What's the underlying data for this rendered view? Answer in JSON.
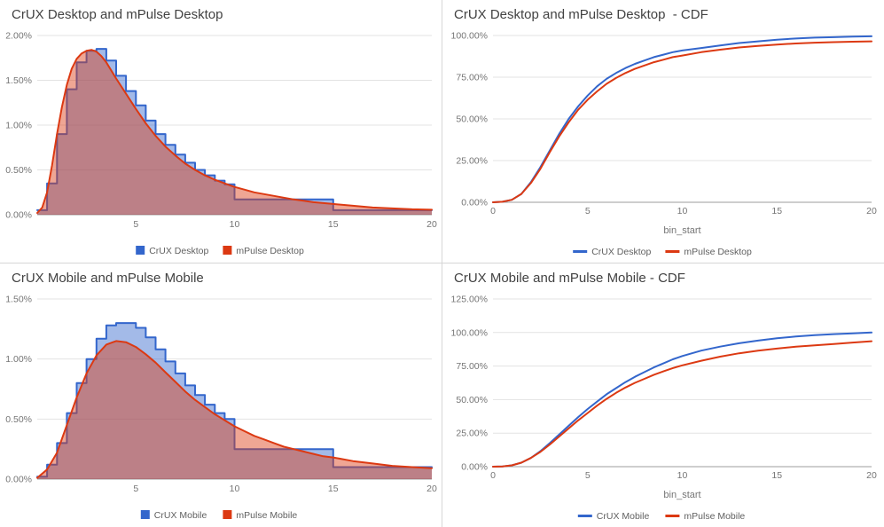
{
  "chart_data": [
    {
      "type": "area",
      "title": "CrUX Desktop and mPulse Desktop",
      "xlabel": "",
      "ylabel": "",
      "xlim": [
        0,
        20
      ],
      "ylim": [
        0,
        2.0
      ],
      "xticks": [
        5,
        10,
        15,
        20
      ],
      "yticks": [
        0,
        0.5,
        1.0,
        1.5,
        2.0
      ],
      "ytick_format": "percent2",
      "grid": true,
      "legend_position": "bottom",
      "series": [
        {
          "name": "CrUX Desktop",
          "color": "#3366cc",
          "style": "step",
          "fill": true,
          "points": [
            [
              0,
              0.05
            ],
            [
              0.5,
              0.35
            ],
            [
              1,
              0.9
            ],
            [
              1.5,
              1.4
            ],
            [
              2,
              1.7
            ],
            [
              2.5,
              1.83
            ],
            [
              3,
              1.85
            ],
            [
              3.5,
              1.72
            ],
            [
              4,
              1.55
            ],
            [
              4.5,
              1.38
            ],
            [
              5,
              1.22
            ],
            [
              5.5,
              1.05
            ],
            [
              6,
              0.9
            ],
            [
              6.5,
              0.78
            ],
            [
              7,
              0.67
            ],
            [
              7.5,
              0.58
            ],
            [
              8,
              0.5
            ],
            [
              8.5,
              0.44
            ],
            [
              9,
              0.38
            ],
            [
              9.5,
              0.34
            ],
            [
              10,
              0.17
            ],
            [
              15,
              0.05
            ],
            [
              20,
              0.05
            ]
          ]
        },
        {
          "name": "mPulse Desktop",
          "color": "#dc3912",
          "style": "line",
          "fill": true,
          "points": [
            [
              0,
              0.02
            ],
            [
              0.25,
              0.08
            ],
            [
              0.5,
              0.25
            ],
            [
              0.75,
              0.55
            ],
            [
              1,
              0.9
            ],
            [
              1.25,
              1.2
            ],
            [
              1.5,
              1.45
            ],
            [
              1.75,
              1.63
            ],
            [
              2,
              1.74
            ],
            [
              2.25,
              1.8
            ],
            [
              2.5,
              1.83
            ],
            [
              2.75,
              1.84
            ],
            [
              3,
              1.82
            ],
            [
              3.25,
              1.77
            ],
            [
              3.5,
              1.7
            ],
            [
              4,
              1.52
            ],
            [
              4.5,
              1.35
            ],
            [
              5,
              1.18
            ],
            [
              5.5,
              1.02
            ],
            [
              6,
              0.88
            ],
            [
              6.5,
              0.76
            ],
            [
              7,
              0.66
            ],
            [
              7.5,
              0.57
            ],
            [
              8,
              0.5
            ],
            [
              8.5,
              0.44
            ],
            [
              9,
              0.39
            ],
            [
              9.5,
              0.35
            ],
            [
              10,
              0.31
            ],
            [
              10.5,
              0.28
            ],
            [
              11,
              0.25
            ],
            [
              11.5,
              0.23
            ],
            [
              12,
              0.21
            ],
            [
              12.5,
              0.19
            ],
            [
              13,
              0.17
            ],
            [
              13.5,
              0.155
            ],
            [
              14,
              0.14
            ],
            [
              14.5,
              0.13
            ],
            [
              15,
              0.12
            ],
            [
              16,
              0.1
            ],
            [
              17,
              0.08
            ],
            [
              18,
              0.07
            ],
            [
              19,
              0.06
            ],
            [
              20,
              0.055
            ]
          ]
        }
      ]
    },
    {
      "type": "line",
      "title": "CrUX Desktop and mPulse Desktop  - CDF",
      "xlabel": "bin_start",
      "ylabel": "",
      "xlim": [
        0,
        20
      ],
      "ylim": [
        0,
        100
      ],
      "xticks": [
        0,
        5,
        10,
        15,
        20
      ],
      "yticks": [
        0,
        25,
        50,
        75,
        100
      ],
      "ytick_format": "percent2",
      "grid": true,
      "legend_position": "bottom",
      "series": [
        {
          "name": "CrUX Desktop",
          "color": "#3366cc",
          "style": "line",
          "fill": false,
          "points": [
            [
              0,
              0
            ],
            [
              0.5,
              0.3
            ],
            [
              1,
              1.5
            ],
            [
              1.5,
              5
            ],
            [
              2,
              12
            ],
            [
              2.5,
              21
            ],
            [
              3,
              31
            ],
            [
              3.5,
              41
            ],
            [
              4,
              50
            ],
            [
              4.5,
              57.5
            ],
            [
              5,
              64
            ],
            [
              5.5,
              69.5
            ],
            [
              6,
              74
            ],
            [
              6.5,
              77.5
            ],
            [
              7,
              80.5
            ],
            [
              7.5,
              83
            ],
            [
              8,
              85
            ],
            [
              8.5,
              87
            ],
            [
              9,
              88.5
            ],
            [
              9.5,
              90
            ],
            [
              10,
              91
            ],
            [
              11,
              92.5
            ],
            [
              12,
              94
            ],
            [
              13,
              95.5
            ],
            [
              14,
              96.5
            ],
            [
              15,
              97.5
            ],
            [
              16,
              98.2
            ],
            [
              17,
              98.7
            ],
            [
              18,
              99
            ],
            [
              19,
              99.3
            ],
            [
              20,
              99.5
            ]
          ]
        },
        {
          "name": "mPulse Desktop",
          "color": "#dc3912",
          "style": "line",
          "fill": false,
          "points": [
            [
              0,
              0
            ],
            [
              0.5,
              0.3
            ],
            [
              1,
              1.5
            ],
            [
              1.5,
              5
            ],
            [
              2,
              11.5
            ],
            [
              2.5,
              20
            ],
            [
              3,
              30
            ],
            [
              3.5,
              39.5
            ],
            [
              4,
              48
            ],
            [
              4.5,
              55.5
            ],
            [
              5,
              61.5
            ],
            [
              5.5,
              66.5
            ],
            [
              6,
              71
            ],
            [
              6.5,
              74.5
            ],
            [
              7,
              77.5
            ],
            [
              7.5,
              80
            ],
            [
              8,
              82
            ],
            [
              8.5,
              84
            ],
            [
              9,
              85.5
            ],
            [
              9.5,
              87
            ],
            [
              10,
              88
            ],
            [
              11,
              90
            ],
            [
              12,
              91.5
            ],
            [
              13,
              92.8
            ],
            [
              14,
              93.8
            ],
            [
              15,
              94.6
            ],
            [
              16,
              95.2
            ],
            [
              17,
              95.7
            ],
            [
              18,
              96
            ],
            [
              19,
              96.3
            ],
            [
              20,
              96.5
            ]
          ]
        }
      ]
    },
    {
      "type": "area",
      "title": "CrUX Mobile and mPulse Mobile",
      "xlabel": "",
      "ylabel": "",
      "xlim": [
        0,
        20
      ],
      "ylim": [
        0,
        1.5
      ],
      "xticks": [
        5,
        10,
        15,
        20
      ],
      "yticks": [
        0,
        0.5,
        1.0,
        1.5
      ],
      "ytick_format": "percent2",
      "grid": true,
      "legend_position": "bottom",
      "series": [
        {
          "name": "CrUX Mobile",
          "color": "#3366cc",
          "style": "step",
          "fill": true,
          "points": [
            [
              0,
              0.02
            ],
            [
              0.5,
              0.12
            ],
            [
              1,
              0.3
            ],
            [
              1.5,
              0.55
            ],
            [
              2,
              0.8
            ],
            [
              2.5,
              1.0
            ],
            [
              3,
              1.17
            ],
            [
              3.5,
              1.28
            ],
            [
              4,
              1.3
            ],
            [
              4.5,
              1.3
            ],
            [
              5,
              1.26
            ],
            [
              5.5,
              1.18
            ],
            [
              6,
              1.08
            ],
            [
              6.5,
              0.98
            ],
            [
              7,
              0.88
            ],
            [
              7.5,
              0.78
            ],
            [
              8,
              0.7
            ],
            [
              8.5,
              0.62
            ],
            [
              9,
              0.55
            ],
            [
              9.5,
              0.5
            ],
            [
              10,
              0.25
            ],
            [
              15,
              0.1
            ],
            [
              20,
              0.1
            ]
          ]
        },
        {
          "name": "mPulse Mobile",
          "color": "#dc3912",
          "style": "line",
          "fill": true,
          "points": [
            [
              0,
              0.01
            ],
            [
              0.5,
              0.08
            ],
            [
              1,
              0.22
            ],
            [
              1.5,
              0.45
            ],
            [
              2,
              0.68
            ],
            [
              2.5,
              0.88
            ],
            [
              3,
              1.03
            ],
            [
              3.5,
              1.12
            ],
            [
              4,
              1.15
            ],
            [
              4.5,
              1.14
            ],
            [
              5,
              1.1
            ],
            [
              5.5,
              1.04
            ],
            [
              6,
              0.97
            ],
            [
              6.5,
              0.89
            ],
            [
              7,
              0.81
            ],
            [
              7.5,
              0.73
            ],
            [
              8,
              0.66
            ],
            [
              8.5,
              0.6
            ],
            [
              9,
              0.54
            ],
            [
              9.5,
              0.49
            ],
            [
              10,
              0.44
            ],
            [
              10.5,
              0.4
            ],
            [
              11,
              0.36
            ],
            [
              11.5,
              0.33
            ],
            [
              12,
              0.3
            ],
            [
              12.5,
              0.27
            ],
            [
              13,
              0.25
            ],
            [
              13.5,
              0.23
            ],
            [
              14,
              0.21
            ],
            [
              14.5,
              0.19
            ],
            [
              15,
              0.18
            ],
            [
              16,
              0.15
            ],
            [
              17,
              0.13
            ],
            [
              18,
              0.11
            ],
            [
              19,
              0.1
            ],
            [
              20,
              0.09
            ]
          ]
        }
      ]
    },
    {
      "type": "line",
      "title": "CrUX Mobile and mPulse Mobile - CDF",
      "xlabel": "bin_start",
      "ylabel": "",
      "xlim": [
        0,
        20
      ],
      "ylim": [
        0,
        125
      ],
      "xticks": [
        0,
        5,
        10,
        15,
        20
      ],
      "yticks": [
        0,
        25,
        50,
        75,
        100,
        125
      ],
      "ytick_format": "percent2",
      "grid": true,
      "legend_position": "bottom",
      "series": [
        {
          "name": "CrUX Mobile",
          "color": "#3366cc",
          "style": "line",
          "fill": false,
          "points": [
            [
              0,
              0
            ],
            [
              0.5,
              0.2
            ],
            [
              1,
              1
            ],
            [
              1.5,
              3
            ],
            [
              2,
              6.5
            ],
            [
              2.5,
              11.5
            ],
            [
              3,
              17.5
            ],
            [
              3.5,
              24
            ],
            [
              4,
              30.5
            ],
            [
              4.5,
              37
            ],
            [
              5,
              43
            ],
            [
              5.5,
              48.5
            ],
            [
              6,
              54
            ],
            [
              6.5,
              58.5
            ],
            [
              7,
              63
            ],
            [
              7.5,
              67
            ],
            [
              8,
              70.5
            ],
            [
              8.5,
              74
            ],
            [
              9,
              77
            ],
            [
              9.5,
              80
            ],
            [
              10,
              82.5
            ],
            [
              11,
              86.5
            ],
            [
              12,
              89.5
            ],
            [
              13,
              92
            ],
            [
              14,
              94
            ],
            [
              15,
              95.8
            ],
            [
              16,
              97
            ],
            [
              17,
              98
            ],
            [
              18,
              98.8
            ],
            [
              19,
              99.4
            ],
            [
              20,
              100
            ]
          ]
        },
        {
          "name": "mPulse Mobile",
          "color": "#dc3912",
          "style": "line",
          "fill": false,
          "points": [
            [
              0,
              0
            ],
            [
              0.5,
              0.2
            ],
            [
              1,
              1
            ],
            [
              1.5,
              3
            ],
            [
              2,
              6.5
            ],
            [
              2.5,
              11
            ],
            [
              3,
              16.5
            ],
            [
              3.5,
              22.5
            ],
            [
              4,
              28.5
            ],
            [
              4.5,
              34.5
            ],
            [
              5,
              40
            ],
            [
              5.5,
              45.5
            ],
            [
              6,
              50.5
            ],
            [
              6.5,
              55
            ],
            [
              7,
              59
            ],
            [
              7.5,
              62.5
            ],
            [
              8,
              65.5
            ],
            [
              8.5,
              68.5
            ],
            [
              9,
              71
            ],
            [
              9.5,
              73.5
            ],
            [
              10,
              75.5
            ],
            [
              11,
              79
            ],
            [
              12,
              82
            ],
            [
              13,
              84.5
            ],
            [
              14,
              86.5
            ],
            [
              15,
              88
            ],
            [
              16,
              89.5
            ],
            [
              17,
              90.5
            ],
            [
              18,
              91.5
            ],
            [
              19,
              92.5
            ],
            [
              20,
              93.5
            ]
          ]
        }
      ]
    }
  ],
  "colors": {
    "crux_blue": "#3366cc",
    "mpulse_red": "#dc3912",
    "grid": "#e3e3e3",
    "baseline": "#9e9e9e",
    "tick_text": "#757575",
    "title_text": "#424242"
  }
}
